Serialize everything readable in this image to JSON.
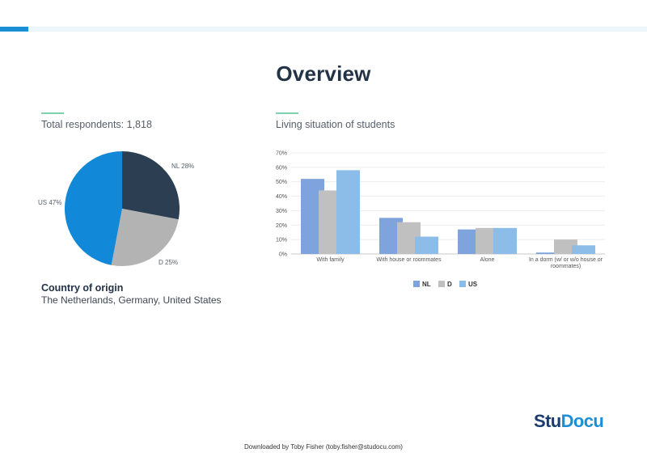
{
  "title": "Overview",
  "respondents_heading": "Total respondents: 1,818",
  "living_heading": "Living situation of students",
  "country": {
    "title": "Country of origin",
    "value": "The Netherlands, Germany, United States"
  },
  "pie": {
    "labels": {
      "nl": "NL 28%",
      "d": "D 25%",
      "us": "US 47%"
    },
    "colors": {
      "nl": "#2c3e52",
      "d": "#b3b3b3",
      "us": "#1188d8"
    }
  },
  "chart_data": [
    {
      "type": "pie",
      "categories": [
        "NL",
        "D",
        "US"
      ],
      "values": [
        28,
        25,
        47
      ],
      "labels": [
        "NL 28%",
        "D 25%",
        "US 47%"
      ],
      "colors": [
        "#2c3e52",
        "#b3b3b3",
        "#1188d8"
      ]
    },
    {
      "type": "bar",
      "categories": [
        "With family",
        "With house or roommates",
        "Alone",
        "In a dorm (w/ or w/o house or roommates)"
      ],
      "category_lines": [
        [
          "With family"
        ],
        [
          "With house or roommates"
        ],
        [
          "Alone"
        ],
        [
          "In a dorm (w/ or w/o house or",
          "roommates)"
        ]
      ],
      "series": [
        {
          "name": "NL",
          "values": [
            52,
            25,
            17,
            1
          ],
          "color": "#7fa3dc"
        },
        {
          "name": "D",
          "values": [
            44,
            22,
            18,
            10
          ],
          "color": "#c0c0c0"
        },
        {
          "name": "US",
          "values": [
            58,
            12,
            18,
            6
          ],
          "color": "#8cbce8"
        }
      ],
      "ylim": [
        0,
        70
      ],
      "yticks": [
        "0%",
        "10%",
        "20%",
        "30%",
        "40%",
        "50%",
        "60%",
        "70%"
      ],
      "grid": true,
      "legend": "bottom"
    }
  ],
  "logo": {
    "part1": "Stu",
    "part2": "Docu"
  },
  "footer": "Downloaded by Toby Fisher (toby.fisher@studocu.com)"
}
